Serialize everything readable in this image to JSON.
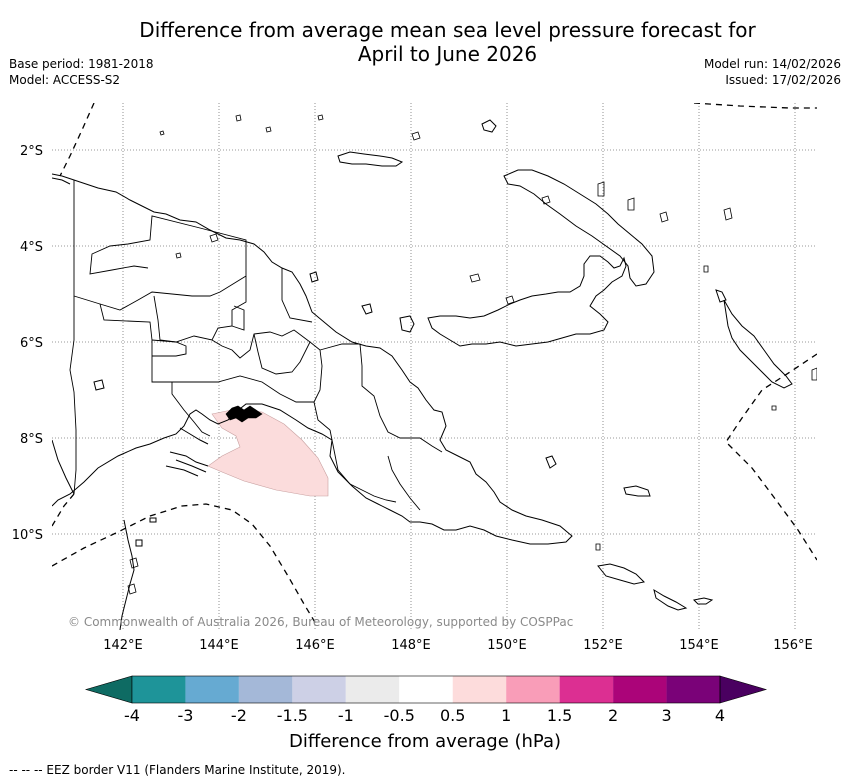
{
  "title_line1": "Difference from average mean sea level pressure forecast for",
  "title_line2": "April to June 2026",
  "info_left": {
    "base_period": "Base period: 1981-2018",
    "model": "Model: ACCESS-S2"
  },
  "info_right": {
    "model_run": "Model run: 14/02/2026",
    "issued": "Issued: 17/02/2026"
  },
  "map": {
    "lat_labels": [
      "2°S",
      "4°S",
      "6°S",
      "8°S",
      "10°S"
    ],
    "lon_labels": [
      "142°E",
      "144°E",
      "146°E",
      "148°E",
      "150°E",
      "152°E",
      "154°E",
      "156°E"
    ],
    "copyright": "© Commonwealth of Australia 2026, Bureau of Meteorology, supported by COSPPac",
    "anomaly_area": {
      "color": "#fbdcdc",
      "category": "0.5 to 1"
    }
  },
  "colorbar": {
    "title": "Difference from average (hPa)",
    "tick_labels": [
      "-4",
      "-3",
      "-2",
      "-1.5",
      "-1",
      "-0.5",
      "0.5",
      "1",
      "1.5",
      "2",
      "3",
      "4"
    ],
    "colors": [
      "#0e6b63",
      "#1e9499",
      "#66aad2",
      "#a4b8d8",
      "#cdd0e6",
      "#ebebeb",
      "#ffffff",
      "#fddcdc",
      "#f99db8",
      "#dc2f92",
      "#ab0479",
      "#7a0278",
      "#4a0060"
    ]
  },
  "legend_note": "--  --  -- EEZ border V11 (Flanders Marine Institute, 2019)."
}
